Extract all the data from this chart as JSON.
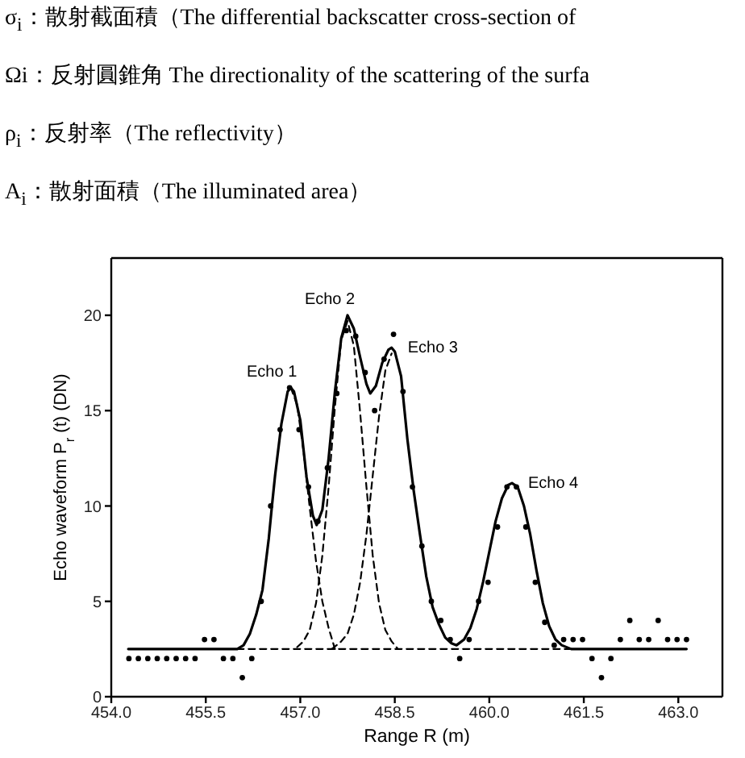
{
  "chart_data": {
    "type": "line",
    "annotations": [
      "σ$_{i}$：散射截面積（The differential backscatter cross-section of",
      "Ωi：反射圓錐角 The directionality of the scattering of the surfa",
      "ρ$_{i}$：反射率（The reflectivity）",
      "A$_{i}$：散射面積（The illuminated area）",
      {
        "text": "Echo 1",
        "x": 456.83,
        "y": 16.2
      },
      {
        "text": "Echo 2",
        "x": 457.75,
        "y": 20
      },
      {
        "text": "Echo 3",
        "x": 458.45,
        "y": 18.3
      },
      {
        "text": "Echo 4",
        "x": 460.36,
        "y": 11.2
      }
    ],
    "xlabel": "Range R (m)",
    "ylabel": "Echo waveform P$_{r}$ (t) (DN)",
    "xlim": [
      454,
      463.7
    ],
    "xticks": [
      {
        "value": 454,
        "label": "454.0"
      },
      455.5,
      {
        "value": 457,
        "label": "457.0"
      },
      458.5,
      {
        "value": 460,
        "label": "460.0"
      },
      461.5,
      {
        "value": 463,
        "label": "463.0"
      }
    ],
    "ylim": [
      0,
      23
    ],
    "yticks": [
      0,
      5,
      10,
      15,
      20
    ],
    "series": [
      {
        "type": "line",
        "color": "#000000",
        "line_style": "dashed",
        "x": [
          456.0,
          461.3
        ],
        "values": [
          2.5,
          2.5
        ]
      },
      {
        "type": "line",
        "color": "#000000",
        "line_style": "dashed",
        "x": [
          456.85,
          456.95,
          457.05,
          457.15,
          457.25,
          457.35,
          457.45,
          457.55
        ],
        "values": [
          16.2,
          15.3,
          12.9,
          9.9,
          7.1,
          5.0,
          3.6,
          2.5
        ]
      },
      {
        "type": "line",
        "color": "#000000",
        "line_style": "dashed",
        "x": [
          456.95,
          457.05,
          457.15,
          457.25,
          457.35,
          457.45,
          457.55,
          457.65,
          457.75,
          457.85,
          457.95,
          458.05,
          458.15,
          458.25,
          458.35,
          458.45,
          458.55
        ],
        "values": [
          2.6,
          2.9,
          3.5,
          4.9,
          7.4,
          11.0,
          15.2,
          18.7,
          19.7,
          18.4,
          14.9,
          11.0,
          7.4,
          4.9,
          3.5,
          2.9,
          2.5
        ]
      },
      {
        "type": "line",
        "color": "#000000",
        "line_style": "dashed",
        "x": [
          457.5,
          457.65,
          457.75,
          457.85,
          457.95,
          458.05,
          458.15,
          458.25,
          458.35,
          458.45
        ],
        "values": [
          2.5,
          2.9,
          3.3,
          4.3,
          6.0,
          8.5,
          11.6,
          14.7,
          17.1,
          18.0
        ]
      },
      {
        "type": "line",
        "color": "#000000",
        "line_style": "solid",
        "x": [
          454.27,
          456.0,
          456.1,
          456.2,
          456.3,
          456.4,
          456.5,
          456.55,
          456.6,
          456.7,
          456.8,
          456.85,
          456.9,
          457.0,
          457.1,
          457.2,
          457.26,
          457.35,
          457.45,
          457.55,
          457.65,
          457.75,
          457.85,
          457.95,
          458.05,
          458.11,
          458.2,
          458.3,
          458.4,
          458.45,
          458.5,
          458.6,
          458.7,
          458.8,
          458.9,
          459.0,
          459.1,
          459.2,
          459.3,
          459.4,
          459.48,
          459.6,
          459.7,
          459.8,
          459.9,
          460.0,
          460.1,
          460.2,
          460.3,
          460.36,
          460.45,
          460.55,
          460.65,
          460.75,
          460.85,
          460.95,
          461.05,
          461.15,
          461.3,
          463.13
        ],
        "values": [
          2.5,
          2.5,
          2.7,
          3.3,
          4.3,
          5.6,
          8.3,
          10,
          11.6,
          14.3,
          16.0,
          16.2,
          16.0,
          14.5,
          11.5,
          9.5,
          9.0,
          9.8,
          12.5,
          16.0,
          18.8,
          20.0,
          19.3,
          17.8,
          16.4,
          15.9,
          16.3,
          17.5,
          18.2,
          18.3,
          18.1,
          16.8,
          13.5,
          10.8,
          8.5,
          6.3,
          4.7,
          3.8,
          3.1,
          2.8,
          2.7,
          3.0,
          3.6,
          4.6,
          6.0,
          7.6,
          9.2,
          10.4,
          11.1,
          11.2,
          11.0,
          10.0,
          8.5,
          6.6,
          4.9,
          3.7,
          3.0,
          2.7,
          2.5,
          2.5
        ]
      },
      {
        "type": "scatter",
        "color": "#000000",
        "marker": "circle",
        "x": [
          454.28,
          454.43,
          454.58,
          454.73,
          454.88,
          455.03,
          455.18,
          455.33,
          455.48,
          455.63,
          455.78,
          455.93,
          456.08,
          456.23,
          456.38,
          456.53,
          456.68,
          456.83,
          456.98,
          457.13,
          457.28,
          457.43,
          457.58,
          457.73,
          457.88,
          458.03,
          458.18,
          458.33,
          458.48,
          458.63,
          458.78,
          458.93,
          459.08,
          459.23,
          459.38,
          459.53,
          459.68,
          459.83,
          459.98,
          460.13,
          460.28,
          460.43,
          460.58,
          460.73,
          460.88,
          461.03,
          461.18,
          461.33,
          461.48,
          461.63,
          461.78,
          461.93,
          462.08,
          462.23,
          462.38,
          462.53,
          462.68,
          462.83,
          462.98,
          463.13
        ],
        "values": [
          2,
          2,
          2,
          2,
          2,
          2,
          2,
          2,
          3,
          3,
          2,
          2,
          1,
          2,
          5,
          10,
          14,
          16.2,
          14,
          11,
          9.2,
          12,
          15.9,
          19.2,
          18.9,
          17,
          15,
          17.7,
          19,
          16,
          11,
          7.9,
          5,
          4,
          3,
          2,
          3,
          5,
          6,
          8.9,
          11,
          11,
          8.9,
          6,
          3.9,
          2.7,
          3,
          3,
          3,
          2,
          1,
          2,
          3,
          4,
          3,
          3,
          4,
          3,
          3,
          3
        ]
      }
    ]
  }
}
